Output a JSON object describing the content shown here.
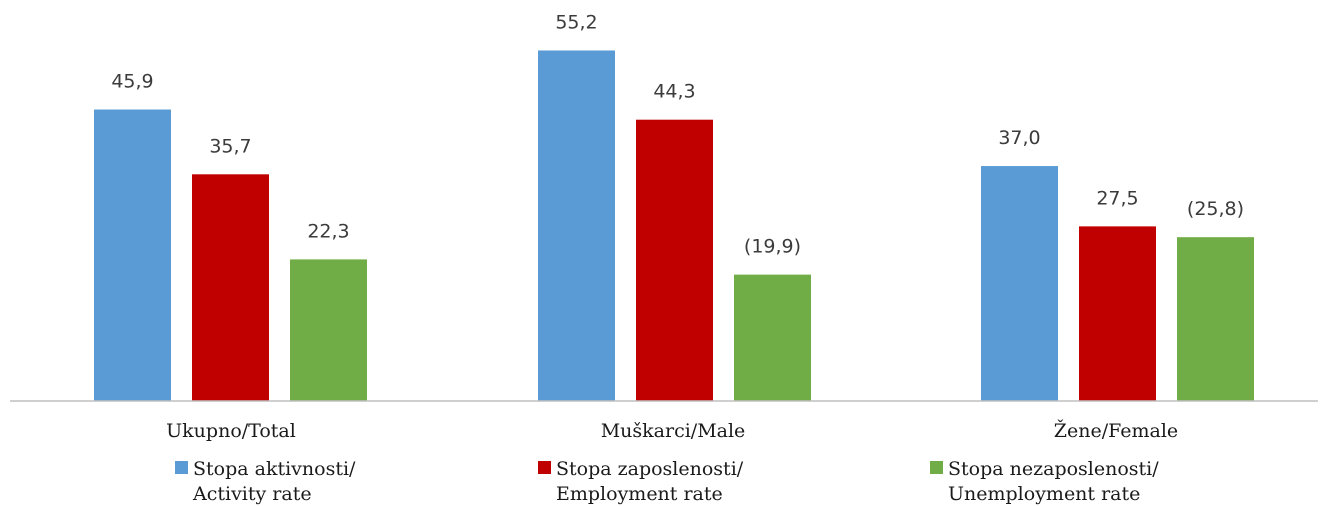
{
  "chart_data": {
    "type": "bar",
    "title": "",
    "xlabel": "",
    "ylabel": "",
    "ylim": [
      0,
      60
    ],
    "grid": false,
    "legend_position": "bottom",
    "categories": [
      "Ukupno/Total",
      "Muškarci/Male",
      "Žene/Female"
    ],
    "series": [
      {
        "name": "Stopa aktivnosti/ Activity rate",
        "legend_lines": [
          "Stopa aktivnosti/",
          "Activity rate"
        ],
        "color": "#5b9bd5",
        "values": [
          45.9,
          55.2,
          37.0
        ],
        "labels": [
          "45,9",
          "55,2",
          "37,0"
        ]
      },
      {
        "name": "Stopa zaposlenosti/ Employment rate",
        "legend_lines": [
          "Stopa zaposlenosti/",
          "Employment rate"
        ],
        "color": "#c00000",
        "values": [
          35.7,
          44.3,
          27.5
        ],
        "labels": [
          "35,7",
          "44,3",
          "27,5"
        ]
      },
      {
        "name": "Stopa nezaposlenosti/ Unemployment rate",
        "legend_lines": [
          "Stopa nezaposlenosti/",
          "Unemployment rate"
        ],
        "color": "#70ad47",
        "values": [
          22.3,
          19.9,
          25.8
        ],
        "labels": [
          "22,3",
          "(19,9)",
          "(25,8)"
        ]
      }
    ]
  }
}
